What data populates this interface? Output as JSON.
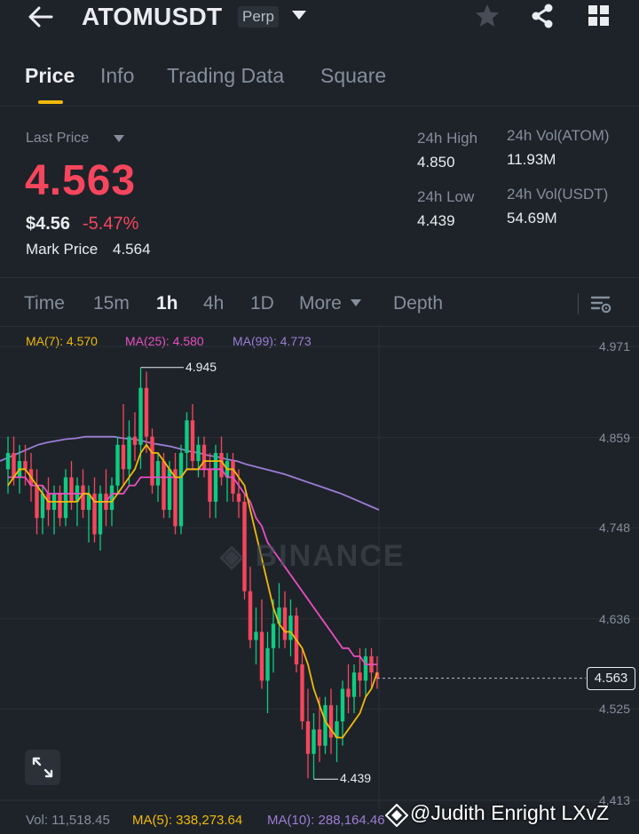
{
  "header": {
    "symbol": "ATOMUSDT",
    "badge": "Perp",
    "icons": [
      "back-arrow-icon",
      "caret-down-icon",
      "star-icon",
      "share-icon",
      "grid-icon"
    ]
  },
  "tabs": [
    {
      "label": "Price",
      "active": true
    },
    {
      "label": "Info",
      "active": false
    },
    {
      "label": "Trading Data",
      "active": false
    },
    {
      "label": "Square",
      "active": false
    }
  ],
  "ticker": {
    "last_price_label": "Last Price",
    "last_price": "4.563",
    "usd_price": "$4.56",
    "change_pct": "-5.47%",
    "mark_price_label": "Mark Price",
    "mark_price": "4.564",
    "high_label": "24h High",
    "high": "4.850",
    "low_label": "24h Low",
    "low": "4.439",
    "vol_atom_label": "24h Vol(ATOM)",
    "vol_atom": "11.93M",
    "vol_usdt_label": "24h Vol(USDT)",
    "vol_usdt": "54.69M"
  },
  "intervals": [
    {
      "label": "Time",
      "active": false
    },
    {
      "label": "15m",
      "active": false
    },
    {
      "label": "1h",
      "active": true
    },
    {
      "label": "4h",
      "active": false
    },
    {
      "label": "1D",
      "active": false
    },
    {
      "label": "More",
      "active": false
    },
    {
      "label": "Depth",
      "active": false
    }
  ],
  "ma_legend": [
    {
      "label": "MA(7): 4.570",
      "color": "#f0b90b"
    },
    {
      "label": "MA(25): 4.580",
      "color": "#e84fc1"
    },
    {
      "label": "MA(99): 4.773",
      "color": "#9b7dd4"
    }
  ],
  "volume_legend": {
    "vol": "Vol: 11,518.45",
    "ma5": "MA(5): 338,273.64",
    "ma10": "MA(10): 288,164.46"
  },
  "watermark": "@Judith Enright LXvZ",
  "chart_data": {
    "type": "candlestick",
    "y_ticks": [
      "4.971",
      "4.859",
      "4.748",
      "4.636",
      "4.525",
      "4.413"
    ],
    "ylim": [
      4.413,
      4.971
    ],
    "current_price": "4.563",
    "high_marker": "4.945",
    "low_marker": "4.439",
    "colors": {
      "up": "#0ecb81",
      "down": "#f6465d"
    },
    "candles": [
      {
        "o": 4.82,
        "h": 4.86,
        "l": 4.79,
        "c": 4.84
      },
      {
        "o": 4.84,
        "h": 4.86,
        "l": 4.8,
        "c": 4.81
      },
      {
        "o": 4.81,
        "h": 4.85,
        "l": 4.79,
        "c": 4.83
      },
      {
        "o": 4.83,
        "h": 4.85,
        "l": 4.8,
        "c": 4.82
      },
      {
        "o": 4.82,
        "h": 4.84,
        "l": 4.78,
        "c": 4.8
      },
      {
        "o": 4.8,
        "h": 4.82,
        "l": 4.74,
        "c": 4.76
      },
      {
        "o": 4.76,
        "h": 4.8,
        "l": 4.74,
        "c": 4.79
      },
      {
        "o": 4.79,
        "h": 4.81,
        "l": 4.75,
        "c": 4.77
      },
      {
        "o": 4.77,
        "h": 4.8,
        "l": 4.74,
        "c": 4.79
      },
      {
        "o": 4.79,
        "h": 4.8,
        "l": 4.75,
        "c": 4.76
      },
      {
        "o": 4.76,
        "h": 4.82,
        "l": 4.75,
        "c": 4.81
      },
      {
        "o": 4.81,
        "h": 4.83,
        "l": 4.77,
        "c": 4.78
      },
      {
        "o": 4.78,
        "h": 4.81,
        "l": 4.75,
        "c": 4.8
      },
      {
        "o": 4.8,
        "h": 4.82,
        "l": 4.76,
        "c": 4.77
      },
      {
        "o": 4.77,
        "h": 4.8,
        "l": 4.73,
        "c": 4.79
      },
      {
        "o": 4.79,
        "h": 4.81,
        "l": 4.73,
        "c": 4.74
      },
      {
        "o": 4.74,
        "h": 4.8,
        "l": 4.72,
        "c": 4.79
      },
      {
        "o": 4.79,
        "h": 4.82,
        "l": 4.75,
        "c": 4.77
      },
      {
        "o": 4.77,
        "h": 4.81,
        "l": 4.75,
        "c": 4.8
      },
      {
        "o": 4.8,
        "h": 4.86,
        "l": 4.79,
        "c": 4.85
      },
      {
        "o": 4.85,
        "h": 4.9,
        "l": 4.8,
        "c": 4.82
      },
      {
        "o": 4.82,
        "h": 4.88,
        "l": 4.8,
        "c": 4.86
      },
      {
        "o": 4.86,
        "h": 4.89,
        "l": 4.83,
        "c": 4.85
      },
      {
        "o": 4.85,
        "h": 4.945,
        "l": 4.82,
        "c": 4.92
      },
      {
        "o": 4.92,
        "h": 4.94,
        "l": 4.84,
        "c": 4.86
      },
      {
        "o": 4.86,
        "h": 4.87,
        "l": 4.79,
        "c": 4.8
      },
      {
        "o": 4.8,
        "h": 4.84,
        "l": 4.78,
        "c": 4.83
      },
      {
        "o": 4.83,
        "h": 4.84,
        "l": 4.76,
        "c": 4.77
      },
      {
        "o": 4.77,
        "h": 4.83,
        "l": 4.76,
        "c": 4.82
      },
      {
        "o": 4.82,
        "h": 4.84,
        "l": 4.74,
        "c": 4.75
      },
      {
        "o": 4.75,
        "h": 4.85,
        "l": 4.74,
        "c": 4.84
      },
      {
        "o": 4.84,
        "h": 4.89,
        "l": 4.82,
        "c": 4.88
      },
      {
        "o": 4.88,
        "h": 4.9,
        "l": 4.82,
        "c": 4.83
      },
      {
        "o": 4.83,
        "h": 4.86,
        "l": 4.81,
        "c": 4.85
      },
      {
        "o": 4.85,
        "h": 4.86,
        "l": 4.81,
        "c": 4.82
      },
      {
        "o": 4.82,
        "h": 4.84,
        "l": 4.76,
        "c": 4.78
      },
      {
        "o": 4.78,
        "h": 4.85,
        "l": 4.76,
        "c": 4.84
      },
      {
        "o": 4.84,
        "h": 4.86,
        "l": 4.8,
        "c": 4.81
      },
      {
        "o": 4.81,
        "h": 4.84,
        "l": 4.78,
        "c": 4.83
      },
      {
        "o": 4.83,
        "h": 4.84,
        "l": 4.78,
        "c": 4.79
      },
      {
        "o": 4.79,
        "h": 4.82,
        "l": 4.76,
        "c": 4.78
      },
      {
        "o": 4.78,
        "h": 4.79,
        "l": 4.66,
        "c": 4.67
      },
      {
        "o": 4.67,
        "h": 4.7,
        "l": 4.6,
        "c": 4.61
      },
      {
        "o": 4.61,
        "h": 4.65,
        "l": 4.58,
        "c": 4.62
      },
      {
        "o": 4.62,
        "h": 4.66,
        "l": 4.55,
        "c": 4.56
      },
      {
        "o": 4.56,
        "h": 4.62,
        "l": 4.52,
        "c": 4.6
      },
      {
        "o": 4.6,
        "h": 4.66,
        "l": 4.57,
        "c": 4.63
      },
      {
        "o": 4.63,
        "h": 4.68,
        "l": 4.6,
        "c": 4.65
      },
      {
        "o": 4.65,
        "h": 4.67,
        "l": 4.6,
        "c": 4.61
      },
      {
        "o": 4.61,
        "h": 4.66,
        "l": 4.59,
        "c": 4.64
      },
      {
        "o": 4.64,
        "h": 4.65,
        "l": 4.57,
        "c": 4.58
      },
      {
        "o": 4.58,
        "h": 4.6,
        "l": 4.5,
        "c": 4.51
      },
      {
        "o": 4.51,
        "h": 4.55,
        "l": 4.44,
        "c": 4.47
      },
      {
        "o": 4.47,
        "h": 4.52,
        "l": 4.439,
        "c": 4.5
      },
      {
        "o": 4.5,
        "h": 4.54,
        "l": 4.46,
        "c": 4.48
      },
      {
        "o": 4.48,
        "h": 4.54,
        "l": 4.47,
        "c": 4.53
      },
      {
        "o": 4.53,
        "h": 4.55,
        "l": 4.47,
        "c": 4.49
      },
      {
        "o": 4.49,
        "h": 4.53,
        "l": 4.46,
        "c": 4.51
      },
      {
        "o": 4.51,
        "h": 4.56,
        "l": 4.48,
        "c": 4.55
      },
      {
        "o": 4.55,
        "h": 4.58,
        "l": 4.52,
        "c": 4.54
      },
      {
        "o": 4.54,
        "h": 4.58,
        "l": 4.52,
        "c": 4.57
      },
      {
        "o": 4.57,
        "h": 4.6,
        "l": 4.54,
        "c": 4.56
      },
      {
        "o": 4.56,
        "h": 4.6,
        "l": 4.54,
        "c": 4.59
      },
      {
        "o": 4.59,
        "h": 4.6,
        "l": 4.55,
        "c": 4.57
      },
      {
        "o": 4.57,
        "h": 4.59,
        "l": 4.55,
        "c": 4.563
      }
    ],
    "ma7": [
      4.8,
      4.81,
      4.82,
      4.82,
      4.81,
      4.8,
      4.79,
      4.78,
      4.78,
      4.78,
      4.78,
      4.78,
      4.78,
      4.79,
      4.79,
      4.78,
      4.78,
      4.78,
      4.78,
      4.79,
      4.8,
      4.81,
      4.82,
      4.84,
      4.85,
      4.84,
      4.84,
      4.83,
      4.82,
      4.81,
      4.81,
      4.82,
      4.82,
      4.82,
      4.83,
      4.83,
      4.83,
      4.83,
      4.82,
      4.82,
      4.81,
      4.8,
      4.77,
      4.74,
      4.71,
      4.68,
      4.65,
      4.63,
      4.62,
      4.62,
      4.61,
      4.6,
      4.58,
      4.55,
      4.53,
      4.51,
      4.5,
      4.49,
      4.49,
      4.5,
      4.51,
      4.52,
      4.54,
      4.55,
      4.57
    ],
    "ma25": [
      4.81,
      4.81,
      4.81,
      4.81,
      4.8,
      4.8,
      4.8,
      4.79,
      4.79,
      4.79,
      4.79,
      4.79,
      4.79,
      4.79,
      4.79,
      4.78,
      4.78,
      4.78,
      4.79,
      4.79,
      4.79,
      4.8,
      4.8,
      4.81,
      4.81,
      4.81,
      4.81,
      4.81,
      4.81,
      4.81,
      4.81,
      4.82,
      4.82,
      4.82,
      4.82,
      4.82,
      4.82,
      4.82,
      4.81,
      4.81,
      4.8,
      4.79,
      4.78,
      4.76,
      4.75,
      4.73,
      4.72,
      4.71,
      4.7,
      4.69,
      4.68,
      4.67,
      4.66,
      4.65,
      4.64,
      4.63,
      4.62,
      4.61,
      4.6,
      4.6,
      4.59,
      4.59,
      4.58,
      4.58,
      4.58
    ],
    "ma99": [
      4.83,
      4.835,
      4.84,
      4.845,
      4.85,
      4.853,
      4.855,
      4.857,
      4.858,
      4.86,
      4.86,
      4.86,
      4.86,
      4.858,
      4.857,
      4.855,
      4.852,
      4.85,
      4.848,
      4.845,
      4.842,
      4.84,
      4.837,
      4.835,
      4.832,
      4.83,
      4.826,
      4.823,
      4.82,
      4.817,
      4.814,
      4.81,
      4.806,
      4.802,
      4.798,
      4.794,
      4.79,
      4.785,
      4.78,
      4.775,
      4.77
    ]
  }
}
